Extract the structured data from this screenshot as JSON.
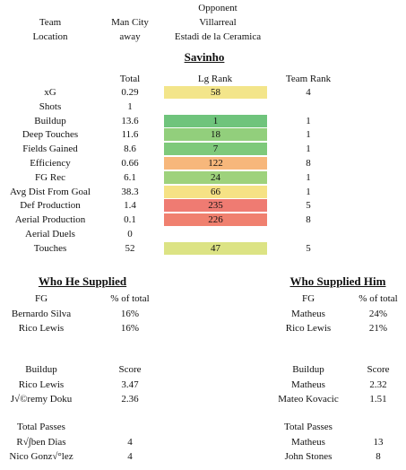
{
  "header": {
    "col_team": "Team",
    "col_opponent_label": "Opponent",
    "team": "Man City",
    "opponent": "Villarreal",
    "location_label": "Location",
    "location": "away",
    "venue": "Estadi de la Ceramica"
  },
  "player": {
    "name": "Savinho"
  },
  "stats_header": {
    "total": "Total",
    "lg_rank": "Lg Rank",
    "team_rank": "Team Rank"
  },
  "stats": [
    {
      "label": "xG",
      "total": "0.29",
      "lg_rank": "58",
      "team_rank": "4",
      "color": "#f3e58a"
    },
    {
      "label": "Shots",
      "total": "1",
      "lg_rank": "",
      "team_rank": "",
      "color": ""
    },
    {
      "label": "Buildup",
      "total": "13.6",
      "lg_rank": "1",
      "team_rank": "1",
      "color": "#6fc47c"
    },
    {
      "label": "Deep Touches",
      "total": "11.6",
      "lg_rank": "18",
      "team_rank": "1",
      "color": "#92cf7c"
    },
    {
      "label": "Fields Gained",
      "total": "8.6",
      "lg_rank": "7",
      "team_rank": "1",
      "color": "#7ec97b"
    },
    {
      "label": "Efficiency",
      "total": "0.66",
      "lg_rank": "122",
      "team_rank": "8",
      "color": "#f7b77b"
    },
    {
      "label": "FG Rec",
      "total": "6.1",
      "lg_rank": "24",
      "team_rank": "1",
      "color": "#9ed27c"
    },
    {
      "label": "Avg Dist From Goal",
      "total": "38.3",
      "lg_rank": "66",
      "team_rank": "1",
      "color": "#f6e285"
    },
    {
      "label": "Def Production",
      "total": "1.4",
      "lg_rank": "235",
      "team_rank": "5",
      "color": "#ef7b72"
    },
    {
      "label": "Aerial Production",
      "total": "0.1",
      "lg_rank": "226",
      "team_rank": "8",
      "color": "#f0806f"
    },
    {
      "label": "Aerial Duels",
      "total": "0",
      "lg_rank": "",
      "team_rank": "",
      "color": ""
    },
    {
      "label": "Touches",
      "total": "52",
      "lg_rank": "47",
      "team_rank": "5",
      "color": "#dce384"
    }
  ],
  "supplied": {
    "title": "Who He Supplied",
    "fg_header": "FG",
    "pct_header": "% of total",
    "fg": [
      {
        "name": "Bernardo Silva",
        "pct": "16%"
      },
      {
        "name": "Rico Lewis",
        "pct": "16%"
      }
    ],
    "buildup_header": "Buildup",
    "score_header": "Score",
    "buildup": [
      {
        "name": "Rico Lewis",
        "score": "3.47"
      },
      {
        "name": "J√©remy Doku",
        "score": "2.36"
      }
    ],
    "passes_header": "Total Passes",
    "passes": [
      {
        "name": "R√∫ben Dias",
        "count": "4"
      },
      {
        "name": "Nico Gonz√°lez",
        "count": "4"
      }
    ]
  },
  "supplied_him": {
    "title": "Who Supplied Him",
    "fg_header": "FG",
    "pct_header": "% of total",
    "fg": [
      {
        "name": "Matheus",
        "pct": "24%"
      },
      {
        "name": "Rico Lewis",
        "pct": "21%"
      }
    ],
    "buildup_header": "Buildup",
    "score_header": "Score",
    "buildup": [
      {
        "name": "Matheus",
        "score": "2.32"
      },
      {
        "name": "Mateo Kovacic",
        "score": "1.51"
      }
    ],
    "passes_header": "Total Passes",
    "passes": [
      {
        "name": "Matheus",
        "count": "13"
      },
      {
        "name": "John Stones",
        "count": "8"
      }
    ]
  }
}
